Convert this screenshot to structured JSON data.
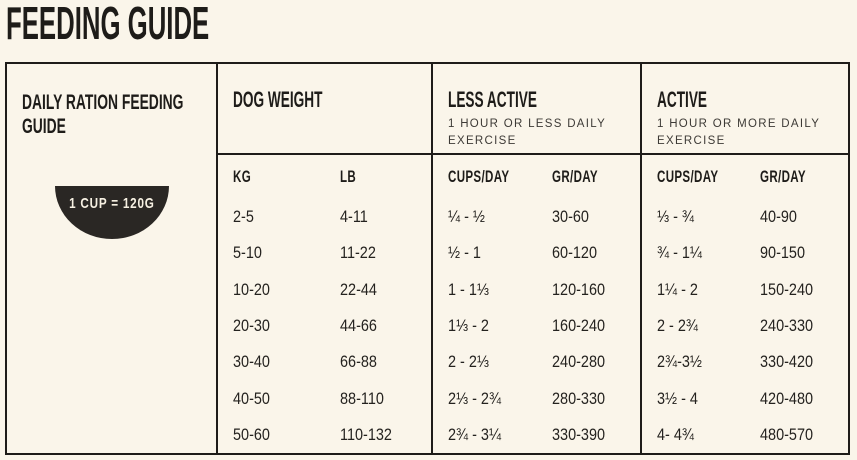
{
  "page": {
    "title": "FEEDING GUIDE"
  },
  "colors": {
    "background": "#faf5ea",
    "ink": "#1e1c19",
    "badge_background": "#2a2724",
    "badge_text": "#f6f0e2"
  },
  "guide": {
    "left_panel": {
      "title": "DAILY RATION FEEDING GUIDE",
      "badge_label": "1 CUP = 120G"
    },
    "columns": [
      {
        "title": "DOG WEIGHT",
        "subtitle": "",
        "headers": [
          "KG",
          "LB"
        ],
        "rows": [
          [
            "2-5",
            "4-11"
          ],
          [
            "5-10",
            "11-22"
          ],
          [
            "10-20",
            "22-44"
          ],
          [
            "20-30",
            "44-66"
          ],
          [
            "30-40",
            "66-88"
          ],
          [
            "40-50",
            "88-110"
          ],
          [
            "50-60",
            "110-132"
          ]
        ]
      },
      {
        "title": "LESS ACTIVE",
        "subtitle": "1 HOUR OR LESS DAILY EXERCISE",
        "headers": [
          "CUPS/DAY",
          "GR/DAY"
        ],
        "rows": [
          [
            "¼ - ½",
            "30-60"
          ],
          [
            "½ - 1",
            "60-120"
          ],
          [
            "1 - 1⅓",
            "120-160"
          ],
          [
            "1⅓ - 2",
            "160-240"
          ],
          [
            "2 - 2⅓",
            "240-280"
          ],
          [
            "2⅓ - 2¾",
            "280-330"
          ],
          [
            "2¾ - 3¼",
            "330-390"
          ]
        ]
      },
      {
        "title": "ACTIVE",
        "subtitle": "1 HOUR OR MORE DAILY EXERCISE",
        "headers": [
          "CUPS/DAY",
          "GR/DAY"
        ],
        "rows": [
          [
            "⅓ - ¾",
            "40-90"
          ],
          [
            "¾ - 1¼",
            "90-150"
          ],
          [
            "1¼ - 2",
            "150-240"
          ],
          [
            "2 - 2¾",
            "240-330"
          ],
          [
            "2¾-3½",
            "330-420"
          ],
          [
            "3½ - 4",
            "420-480"
          ],
          [
            "4- 4¾",
            "480-570"
          ]
        ]
      }
    ]
  }
}
